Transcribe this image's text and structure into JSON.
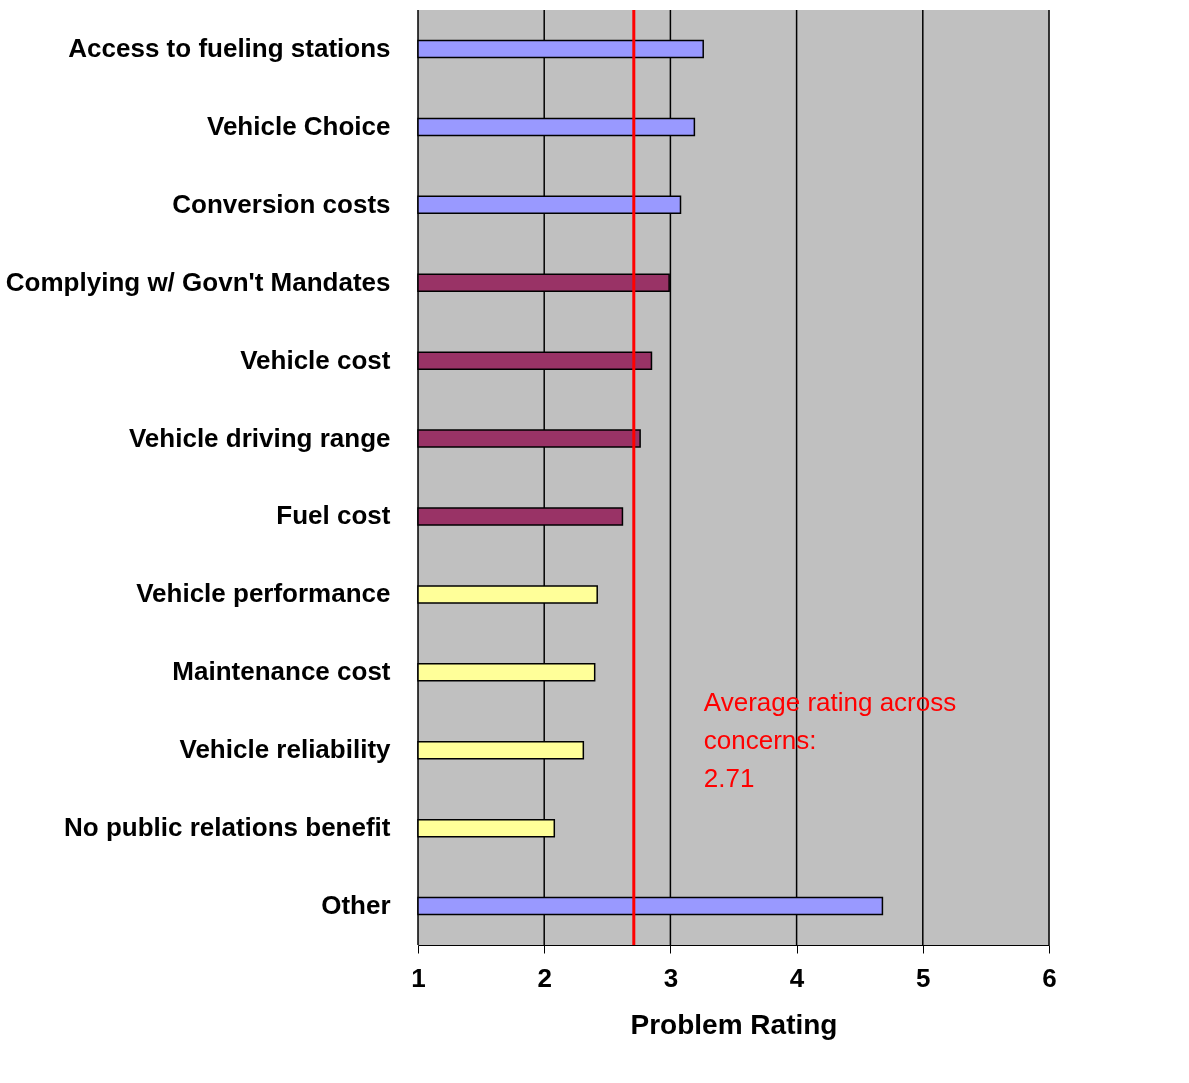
{
  "chart_data": {
    "type": "bar",
    "orientation": "horizontal",
    "xlabel": "Problem Rating",
    "categories": [
      "Access to fueling stations",
      "Vehicle Choice",
      "Conversion costs",
      "Complying w/ Govn't Mandates",
      "Vehicle cost",
      "Vehicle driving range",
      "Fuel cost",
      "Vehicle performance",
      "Maintenance cost",
      "Vehicle reliability",
      "No public relations benefit",
      "Other"
    ],
    "values": [
      3.26,
      3.19,
      3.08,
      2.99,
      2.85,
      2.76,
      2.62,
      2.42,
      2.4,
      2.31,
      2.08,
      4.68
    ],
    "colors": [
      "#9999ff",
      "#9999ff",
      "#9999ff",
      "#993366",
      "#993366",
      "#993366",
      "#993366",
      "#ffff99",
      "#ffff99",
      "#ffff99",
      "#ffff99",
      "#9999ff"
    ],
    "xlim": [
      1,
      6
    ],
    "xticks": [
      1,
      2,
      3,
      4,
      5,
      6
    ],
    "grid": "x",
    "ref_lines": [
      {
        "axis": "x",
        "value": 2.71,
        "label": "Average rating across concerns: 2.71",
        "color": "#ff0000"
      }
    ]
  }
}
